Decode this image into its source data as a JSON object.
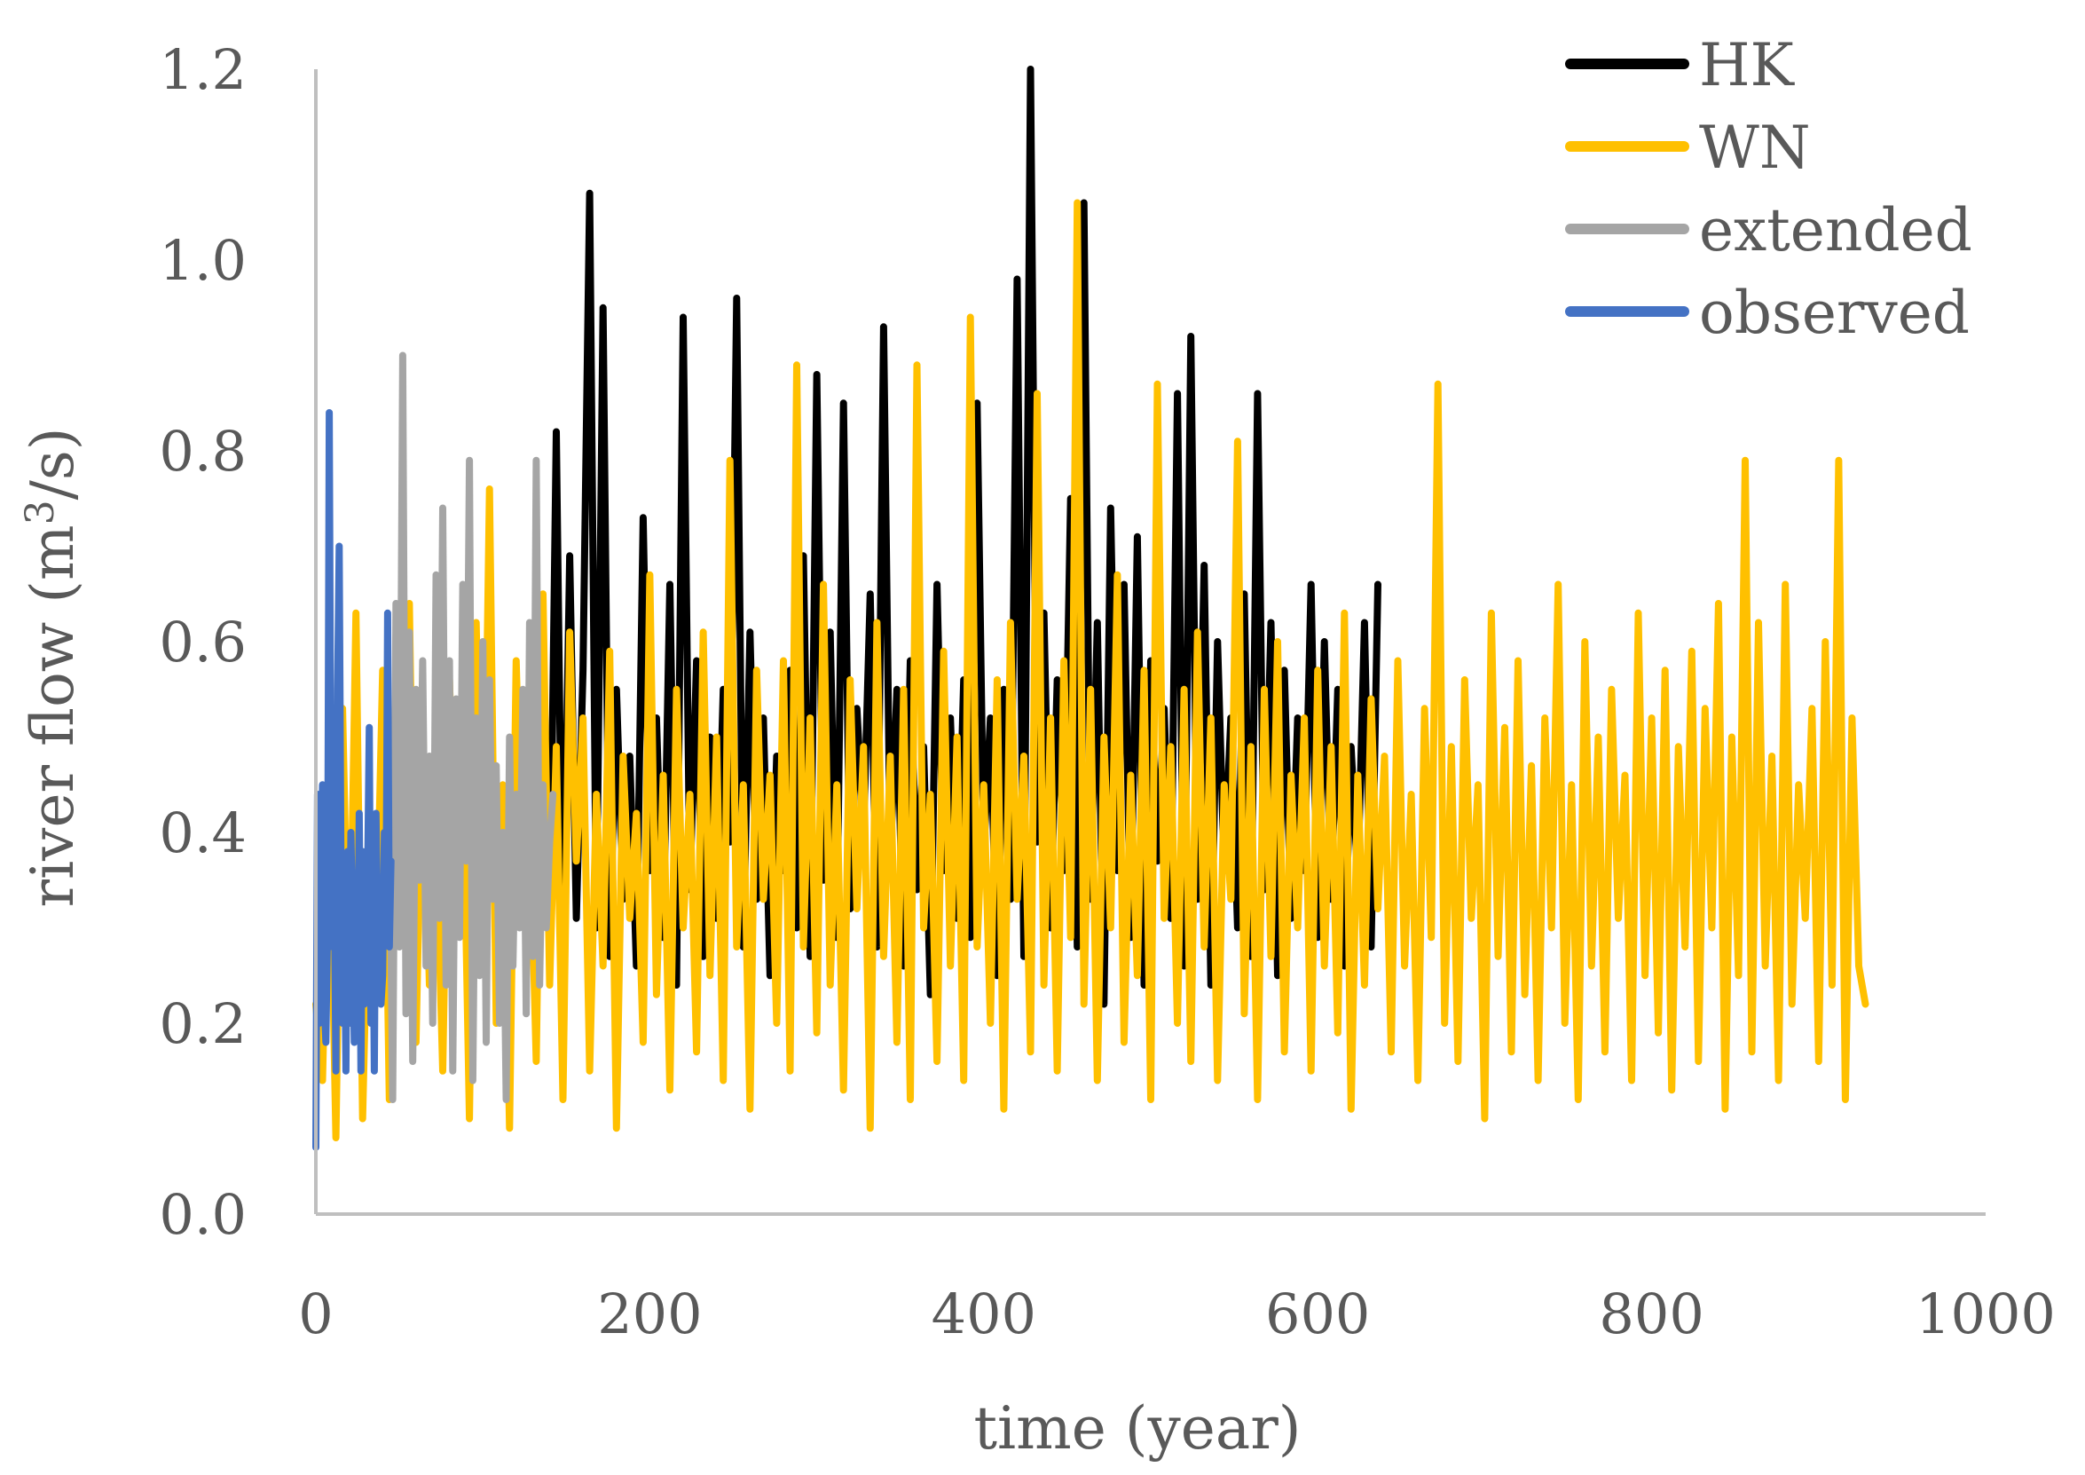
{
  "chart_data": {
    "type": "line",
    "title": "",
    "xlabel": "time (year)",
    "ylabel_prefix": "river flow (m",
    "ylabel_sup": "3",
    "ylabel_suffix": "/s)",
    "xlim": [
      0,
      1000
    ],
    "ylim": [
      0,
      1.2
    ],
    "xticks": [
      0,
      200,
      400,
      600,
      800,
      1000
    ],
    "yticks": [
      "0.0",
      "0.2",
      "0.4",
      "0.6",
      "0.8",
      "1.0",
      "1.2"
    ],
    "grid": false,
    "legend_position": "top-right",
    "series": [
      {
        "name": "HK",
        "color": "#000000",
        "x_start": 128,
        "x_step": 4,
        "values": [
          0.35,
          0.22,
          0.61,
          0.28,
          0.82,
          0.25,
          0.69,
          0.31,
          0.57,
          1.07,
          0.3,
          0.95,
          0.27,
          0.55,
          0.33,
          0.48,
          0.26,
          0.73,
          0.36,
          0.52,
          0.29,
          0.66,
          0.24,
          0.94,
          0.34,
          0.58,
          0.27,
          0.5,
          0.31,
          0.55,
          0.39,
          0.96,
          0.28,
          0.61,
          0.33,
          0.52,
          0.25,
          0.48,
          0.36,
          0.57,
          0.3,
          0.69,
          0.27,
          0.88,
          0.35,
          0.61,
          0.29,
          0.85,
          0.32,
          0.53,
          0.4,
          0.65,
          0.28,
          0.93,
          0.37,
          0.55,
          0.26,
          0.58,
          0.34,
          0.49,
          0.23,
          0.66,
          0.36,
          0.52,
          0.31,
          0.56,
          0.29,
          0.85,
          0.38,
          0.52,
          0.25,
          0.55,
          0.33,
          0.98,
          0.27,
          1.2,
          0.39,
          0.63,
          0.3,
          0.56,
          0.36,
          0.75,
          0.28,
          1.06,
          0.33,
          0.62,
          0.22,
          0.74,
          0.36,
          0.66,
          0.29,
          0.71,
          0.24,
          0.58,
          0.37,
          0.53,
          0.31,
          0.86,
          0.26,
          0.92,
          0.33,
          0.68,
          0.24,
          0.6,
          0.36,
          0.52,
          0.3,
          0.65,
          0.27,
          0.86,
          0.34,
          0.62,
          0.25,
          0.57,
          0.31,
          0.52,
          0.36,
          0.66,
          0.29,
          0.6,
          0.33,
          0.55,
          0.26,
          0.49,
          0.35,
          0.62,
          0.28,
          0.66
        ]
      },
      {
        "name": "WN",
        "color": "#ffc000",
        "x_start": 0,
        "x_step": 4,
        "values": [
          0.22,
          0.14,
          0.45,
          0.08,
          0.53,
          0.2,
          0.63,
          0.1,
          0.4,
          0.26,
          0.57,
          0.12,
          0.47,
          0.3,
          0.64,
          0.18,
          0.52,
          0.24,
          0.41,
          0.15,
          0.56,
          0.33,
          0.48,
          0.1,
          0.62,
          0.27,
          0.76,
          0.2,
          0.45,
          0.09,
          0.58,
          0.31,
          0.43,
          0.16,
          0.65,
          0.24,
          0.49,
          0.12,
          0.61,
          0.37,
          0.52,
          0.15,
          0.44,
          0.26,
          0.59,
          0.09,
          0.48,
          0.31,
          0.42,
          0.18,
          0.67,
          0.23,
          0.46,
          0.13,
          0.55,
          0.3,
          0.44,
          0.17,
          0.61,
          0.25,
          0.5,
          0.14,
          0.79,
          0.28,
          0.45,
          0.11,
          0.57,
          0.33,
          0.46,
          0.2,
          0.58,
          0.15,
          0.89,
          0.28,
          0.52,
          0.19,
          0.66,
          0.24,
          0.45,
          0.13,
          0.56,
          0.32,
          0.49,
          0.09,
          0.62,
          0.27,
          0.48,
          0.18,
          0.55,
          0.12,
          0.89,
          0.3,
          0.44,
          0.16,
          0.59,
          0.26,
          0.5,
          0.14,
          0.94,
          0.28,
          0.45,
          0.2,
          0.56,
          0.11,
          0.62,
          0.33,
          0.48,
          0.17,
          0.86,
          0.24,
          0.52,
          0.15,
          0.58,
          0.29,
          1.06,
          0.22,
          0.55,
          0.14,
          0.5,
          0.3,
          0.67,
          0.18,
          0.46,
          0.25,
          0.57,
          0.12,
          0.87,
          0.31,
          0.49,
          0.2,
          0.55,
          0.16,
          0.61,
          0.28,
          0.52,
          0.14,
          0.45,
          0.33,
          0.81,
          0.21,
          0.49,
          0.12,
          0.55,
          0.27,
          0.6,
          0.17,
          0.46,
          0.3,
          0.52,
          0.15,
          0.57,
          0.26,
          0.49,
          0.19,
          0.63,
          0.11,
          0.46,
          0.24,
          0.54,
          0.32,
          0.48,
          0.17,
          0.58,
          0.26,
          0.44,
          0.14,
          0.53,
          0.29,
          0.87,
          0.2,
          0.49,
          0.16,
          0.56,
          0.31,
          0.45,
          0.1,
          0.63,
          0.27,
          0.51,
          0.17,
          0.58,
          0.23,
          0.47,
          0.14,
          0.52,
          0.3,
          0.66,
          0.2,
          0.45,
          0.12,
          0.6,
          0.26,
          0.5,
          0.17,
          0.55,
          0.31,
          0.46,
          0.14,
          0.63,
          0.25,
          0.52,
          0.19,
          0.57,
          0.13,
          0.49,
          0.28,
          0.59,
          0.16,
          0.53,
          0.3,
          0.64,
          0.11,
          0.5,
          0.25,
          0.79,
          0.17,
          0.62,
          0.26,
          0.48,
          0.14,
          0.66,
          0.22,
          0.45,
          0.31,
          0.53,
          0.16,
          0.6,
          0.24,
          0.79,
          0.12,
          0.52,
          0.26,
          0.22
        ]
      },
      {
        "name": "extended",
        "color": "#a5a5a5",
        "x_start": 44,
        "x_step": 2,
        "values": [
          0.45,
          0.12,
          0.64,
          0.28,
          0.9,
          0.21,
          0.61,
          0.16,
          0.55,
          0.35,
          0.58,
          0.26,
          0.48,
          0.2,
          0.67,
          0.31,
          0.74,
          0.24,
          0.58,
          0.15,
          0.54,
          0.29,
          0.66,
          0.37,
          0.79,
          0.14,
          0.52,
          0.25,
          0.6,
          0.18,
          0.56,
          0.33,
          0.47,
          0.2,
          0.4,
          0.12,
          0.5,
          0.26,
          0.44,
          0.3,
          0.55,
          0.21,
          0.62,
          0.27,
          0.79,
          0.24,
          0.45,
          0.3,
          0.39,
          0.44
        ]
      },
      {
        "name": "observed",
        "color": "#4472c4",
        "x_start": 0,
        "x_step": 1,
        "values": [
          0.07,
          0.44,
          0.2,
          0.35,
          0.45,
          0.22,
          0.18,
          0.3,
          0.84,
          0.42,
          0.28,
          0.35,
          0.15,
          0.55,
          0.7,
          0.38,
          0.2,
          0.35,
          0.15,
          0.38,
          0.2,
          0.4,
          0.3,
          0.18,
          0.35,
          0.25,
          0.42,
          0.15,
          0.38,
          0.22,
          0.28,
          0.35,
          0.51,
          0.2,
          0.38,
          0.15,
          0.42,
          0.28,
          0.35,
          0.22,
          0.25,
          0.4,
          0.3,
          0.63,
          0.28,
          0.37
        ]
      }
    ]
  }
}
